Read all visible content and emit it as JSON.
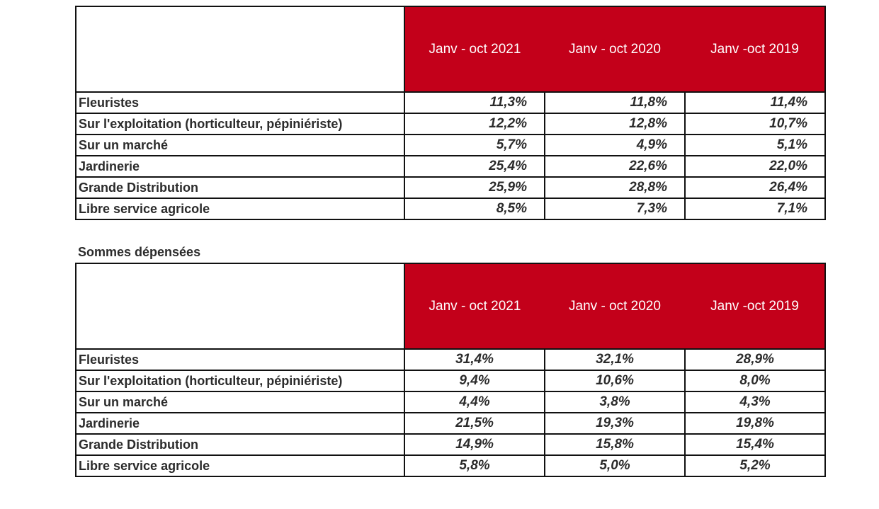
{
  "tables": [
    {
      "caption": null,
      "headers": [
        "Janv - oct 2021",
        "Janv - oct 2020",
        "Janv -oct 2019"
      ],
      "rows": [
        {
          "label": "Fleuristes",
          "values": [
            "11,3%",
            "11,8%",
            "11,4%"
          ]
        },
        {
          "label": "Sur l'exploitation (horticulteur, pépiniériste)",
          "values": [
            "12,2%",
            "12,8%",
            "10,7%"
          ]
        },
        {
          "label": "Sur un marché",
          "values": [
            "5,7%",
            "4,9%",
            "5,1%"
          ]
        },
        {
          "label": "Jardinerie",
          "values": [
            "25,4%",
            "22,6%",
            "22,0%"
          ]
        },
        {
          "label": "Grande Distribution",
          "values": [
            "25,9%",
            "28,8%",
            "26,4%"
          ]
        },
        {
          "label": "Libre service agricole",
          "values": [
            "8,5%",
            "7,3%",
            "7,1%"
          ]
        }
      ]
    },
    {
      "caption": "Sommes dépensées",
      "headers": [
        "Janv - oct 2021",
        "Janv - oct 2020",
        "Janv -oct 2019"
      ],
      "rows": [
        {
          "label": "Fleuristes",
          "values": [
            "31,4%",
            "32,1%",
            "28,9%"
          ]
        },
        {
          "label": "Sur l'exploitation (horticulteur, pépiniériste)",
          "values": [
            "9,4%",
            "10,6%",
            "8,0%"
          ]
        },
        {
          "label": "Sur un marché",
          "values": [
            "4,4%",
            "3,8%",
            "4,3%"
          ]
        },
        {
          "label": "Jardinerie",
          "values": [
            "21,5%",
            "19,3%",
            "19,8%"
          ]
        },
        {
          "label": "Grande Distribution",
          "values": [
            "14,9%",
            "15,8%",
            "15,4%"
          ]
        },
        {
          "label": "Libre service agricole",
          "values": [
            "5,8%",
            "5,0%",
            "5,2%"
          ]
        }
      ]
    }
  ],
  "colors": {
    "header_bg": "#c3001a"
  }
}
